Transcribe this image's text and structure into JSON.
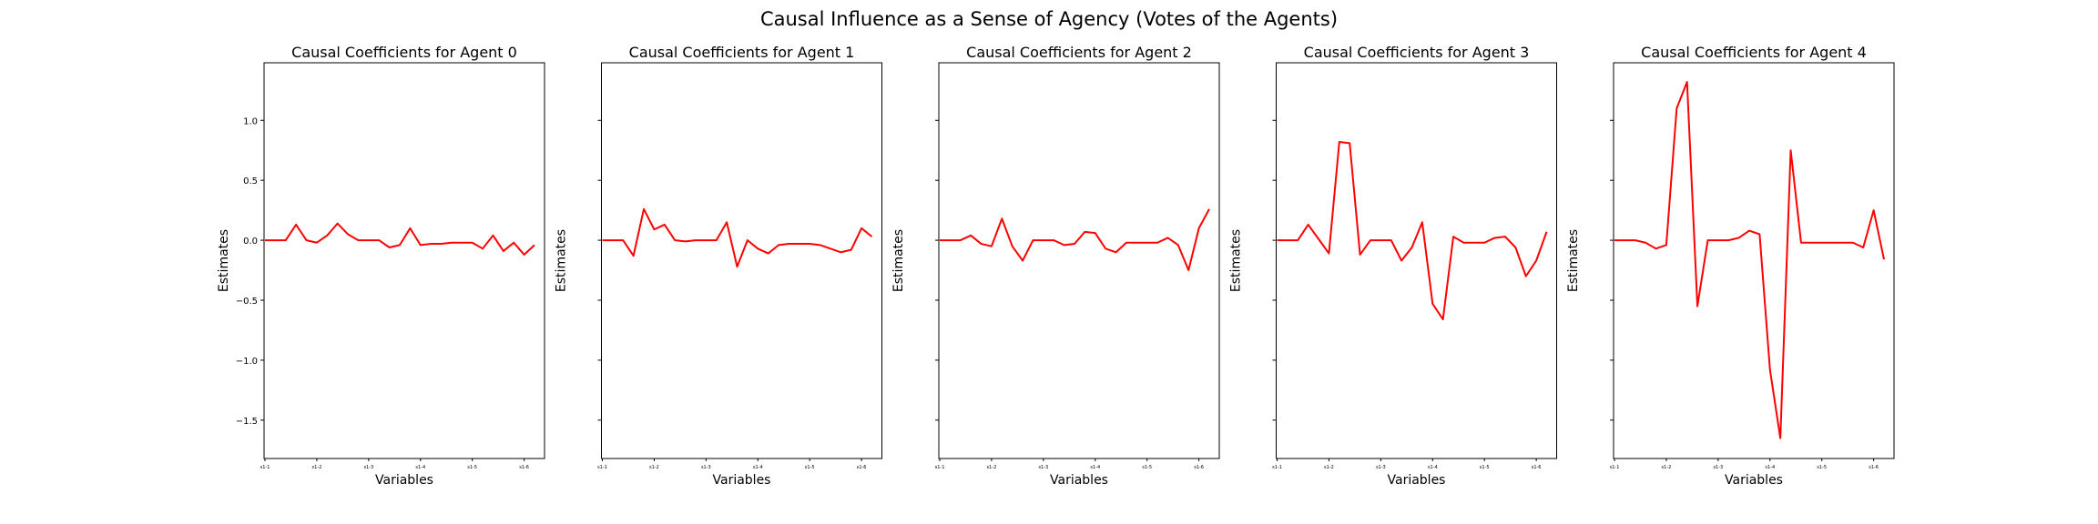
{
  "suptitle": "Causal Influence as a Sense of Agency (Votes of the Agents)",
  "line_color": "#ff0000",
  "chart_data": [
    {
      "type": "line",
      "title": "Causal Coefficients for Agent 0",
      "xlabel": "Variables",
      "ylabel": "Estimates",
      "ylim": [
        -1.82,
        1.48
      ],
      "yticks": [
        1.0,
        0.5,
        0.0,
        -0.5,
        -1.0,
        -1.5
      ],
      "ytick_labels": [
        "1.0",
        "0.5",
        "0.0",
        "−0.5",
        "−1.0",
        "−1.5"
      ],
      "xticks": [
        0,
        5,
        10,
        15,
        20,
        25
      ],
      "xtick_labels": [
        "s1-1",
        "s1-2",
        "s1-3",
        "s1-4",
        "s1-5",
        "s1-6"
      ],
      "x": [
        0,
        1,
        2,
        3,
        4,
        5,
        6,
        7,
        8,
        9,
        10,
        11,
        12,
        13,
        14,
        15,
        16,
        17,
        18,
        19,
        20,
        21,
        22,
        23,
        24,
        25,
        26
      ],
      "y": [
        0.0,
        0.0,
        0.0,
        0.13,
        0.0,
        -0.02,
        0.04,
        0.14,
        0.05,
        0.0,
        0.0,
        0.0,
        -0.06,
        -0.04,
        0.1,
        -0.04,
        -0.03,
        -0.03,
        -0.02,
        -0.02,
        -0.02,
        -0.07,
        0.04,
        -0.09,
        -0.02,
        -0.12,
        -0.04
      ]
    },
    {
      "type": "line",
      "title": "Causal Coefficients for Agent 1",
      "xlabel": "Variables",
      "ylabel": "Estimates",
      "ylim": [
        -1.82,
        1.48
      ],
      "yticks": [
        1.0,
        0.5,
        0.0,
        -0.5,
        -1.0,
        -1.5
      ],
      "ytick_labels": [
        "",
        "",
        "",
        "",
        "",
        ""
      ],
      "xticks": [
        0,
        5,
        10,
        15,
        20,
        25
      ],
      "xtick_labels": [
        "s1-1",
        "s1-2",
        "s1-3",
        "s1-4",
        "s1-5",
        "s1-6"
      ],
      "x": [
        0,
        1,
        2,
        3,
        4,
        5,
        6,
        7,
        8,
        9,
        10,
        11,
        12,
        13,
        14,
        15,
        16,
        17,
        18,
        19,
        20,
        21,
        22,
        23,
        24,
        25,
        26
      ],
      "y": [
        0.0,
        0.0,
        0.0,
        -0.13,
        0.26,
        0.09,
        0.13,
        0.0,
        -0.01,
        0.0,
        0.0,
        0.0,
        0.15,
        -0.22,
        0.0,
        -0.07,
        -0.11,
        -0.04,
        -0.03,
        -0.03,
        -0.03,
        -0.04,
        -0.07,
        -0.1,
        -0.08,
        0.1,
        0.03
      ]
    },
    {
      "type": "line",
      "title": "Causal Coefficients for Agent 2",
      "xlabel": "Variables",
      "ylabel": "Estimates",
      "ylim": [
        -1.82,
        1.48
      ],
      "yticks": [
        1.0,
        0.5,
        0.0,
        -0.5,
        -1.0,
        -1.5
      ],
      "ytick_labels": [
        "",
        "",
        "",
        "",
        "",
        ""
      ],
      "xticks": [
        0,
        5,
        10,
        15,
        20,
        25
      ],
      "xtick_labels": [
        "s1-1",
        "s1-2",
        "s1-3",
        "s1-4",
        "s1-5",
        "s1-6"
      ],
      "x": [
        0,
        1,
        2,
        3,
        4,
        5,
        6,
        7,
        8,
        9,
        10,
        11,
        12,
        13,
        14,
        15,
        16,
        17,
        18,
        19,
        20,
        21,
        22,
        23,
        24,
        25,
        26
      ],
      "y": [
        0.0,
        0.0,
        0.0,
        0.04,
        -0.03,
        -0.05,
        0.18,
        -0.05,
        -0.17,
        0.0,
        0.0,
        0.0,
        -0.04,
        -0.03,
        0.07,
        0.06,
        -0.07,
        -0.1,
        -0.02,
        -0.02,
        -0.02,
        -0.02,
        0.02,
        -0.04,
        -0.25,
        0.1,
        0.26
      ]
    },
    {
      "type": "line",
      "title": "Causal Coefficients for Agent 3",
      "xlabel": "Variables",
      "ylabel": "Estimates",
      "ylim": [
        -1.82,
        1.48
      ],
      "yticks": [
        1.0,
        0.5,
        0.0,
        -0.5,
        -1.0,
        -1.5
      ],
      "ytick_labels": [
        "",
        "",
        "",
        "",
        "",
        ""
      ],
      "xticks": [
        0,
        5,
        10,
        15,
        20,
        25
      ],
      "xtick_labels": [
        "s1-1",
        "s1-2",
        "s1-3",
        "s1-4",
        "s1-5",
        "s1-6"
      ],
      "x": [
        0,
        1,
        2,
        3,
        4,
        5,
        6,
        7,
        8,
        9,
        10,
        11,
        12,
        13,
        14,
        15,
        16,
        17,
        18,
        19,
        20,
        21,
        22,
        23,
        24,
        25,
        26
      ],
      "y": [
        0.0,
        0.0,
        0.0,
        0.13,
        0.01,
        -0.11,
        0.82,
        0.81,
        -0.12,
        0.0,
        0.0,
        0.0,
        -0.17,
        -0.06,
        0.15,
        -0.53,
        -0.66,
        0.03,
        -0.02,
        -0.02,
        -0.02,
        0.02,
        0.03,
        -0.06,
        -0.3,
        -0.17,
        0.07
      ]
    },
    {
      "type": "line",
      "title": "Causal Coefficients for Agent 4",
      "xlabel": "Variables",
      "ylabel": "Estimates",
      "ylim": [
        -1.82,
        1.48
      ],
      "yticks": [
        1.0,
        0.5,
        0.0,
        -0.5,
        -1.0,
        -1.5
      ],
      "ytick_labels": [
        "",
        "",
        "",
        "",
        "",
        ""
      ],
      "xticks": [
        0,
        5,
        10,
        15,
        20,
        25
      ],
      "xtick_labels": [
        "s1-1",
        "s1-2",
        "s1-3",
        "s1-4",
        "s1-5",
        "s1-6"
      ],
      "x": [
        0,
        1,
        2,
        3,
        4,
        5,
        6,
        7,
        8,
        9,
        10,
        11,
        12,
        13,
        14,
        15,
        16,
        17,
        18,
        19,
        20,
        21,
        22,
        23,
        24,
        25,
        26
      ],
      "y": [
        0.0,
        0.0,
        0.0,
        -0.02,
        -0.07,
        -0.04,
        1.1,
        1.32,
        -0.55,
        0.0,
        0.0,
        0.0,
        0.02,
        0.08,
        0.05,
        -1.08,
        -1.65,
        0.75,
        -0.02,
        -0.02,
        -0.02,
        -0.02,
        -0.02,
        -0.02,
        -0.06,
        0.25,
        -0.16
      ]
    }
  ]
}
